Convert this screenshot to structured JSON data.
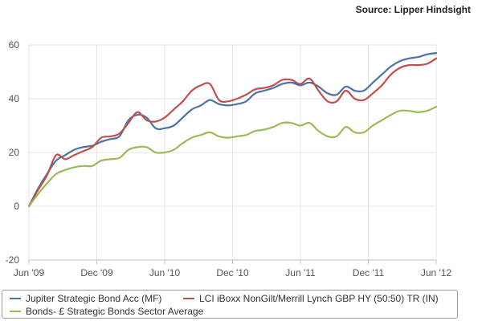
{
  "source": "Source: Lipper Hindsight",
  "chart_data": {
    "type": "line",
    "x_labels": [
      "Jun '09",
      "Dec '09",
      "Jun '10",
      "Dec '10",
      "Jun '11",
      "Dec '11",
      "Jun '12"
    ],
    "ylim": [
      -20,
      60
    ],
    "y_ticks": [
      -20,
      0,
      20,
      40,
      60
    ],
    "grid": true,
    "legend_position": "bottom",
    "series": [
      {
        "name": "Jupiter Strategic Bond Acc (MF)",
        "color": "#4a72a8",
        "points": [
          [
            0,
            0
          ],
          [
            1,
            6.5
          ],
          [
            2,
            12
          ],
          [
            3,
            17
          ],
          [
            4,
            19
          ],
          [
            5,
            21
          ],
          [
            6,
            22
          ],
          [
            7,
            22.5
          ],
          [
            8,
            24
          ],
          [
            9,
            25
          ],
          [
            10,
            26
          ],
          [
            11,
            32
          ],
          [
            12,
            34
          ],
          [
            13,
            33
          ],
          [
            14,
            29
          ],
          [
            15,
            29
          ],
          [
            16,
            30
          ],
          [
            17,
            33
          ],
          [
            18,
            36
          ],
          [
            19,
            37.5
          ],
          [
            20,
            39.5
          ],
          [
            21,
            38
          ],
          [
            22,
            37.5
          ],
          [
            23,
            38
          ],
          [
            24,
            39
          ],
          [
            25,
            42
          ],
          [
            26,
            43
          ],
          [
            27,
            44
          ],
          [
            28,
            45.5
          ],
          [
            29,
            46
          ],
          [
            30,
            45
          ],
          [
            31,
            46
          ],
          [
            32,
            44.5
          ],
          [
            33,
            42
          ],
          [
            34,
            41.5
          ],
          [
            35,
            44.5
          ],
          [
            36,
            43
          ],
          [
            37,
            43
          ],
          [
            38,
            46
          ],
          [
            39,
            49
          ],
          [
            40,
            52
          ],
          [
            41,
            54
          ],
          [
            42,
            55
          ],
          [
            43,
            55.5
          ],
          [
            44,
            56.5
          ],
          [
            45,
            57
          ]
        ]
      },
      {
        "name": "LCI iBoxx NonGilt/Merrill Lynch GBP HY (50:50) TR (IN)",
        "color": "#c0504d",
        "points": [
          [
            0,
            0
          ],
          [
            1,
            6
          ],
          [
            2,
            11.5
          ],
          [
            3,
            19
          ],
          [
            4,
            17.5
          ],
          [
            5,
            19
          ],
          [
            6,
            20.5
          ],
          [
            7,
            22
          ],
          [
            8,
            25.5
          ],
          [
            9,
            26
          ],
          [
            10,
            27
          ],
          [
            11,
            31
          ],
          [
            12,
            35
          ],
          [
            13,
            32
          ],
          [
            14,
            31.5
          ],
          [
            15,
            33
          ],
          [
            16,
            36
          ],
          [
            17,
            39
          ],
          [
            18,
            43
          ],
          [
            19,
            45
          ],
          [
            20,
            45.5
          ],
          [
            21,
            39.5
          ],
          [
            22,
            39
          ],
          [
            23,
            40
          ],
          [
            24,
            41.5
          ],
          [
            25,
            43.5
          ],
          [
            26,
            44
          ],
          [
            27,
            45
          ],
          [
            28,
            47
          ],
          [
            29,
            47
          ],
          [
            30,
            45.5
          ],
          [
            31,
            47.5
          ],
          [
            32,
            43
          ],
          [
            33,
            39
          ],
          [
            34,
            39
          ],
          [
            35,
            43
          ],
          [
            36,
            40
          ],
          [
            37,
            39.5
          ],
          [
            38,
            42
          ],
          [
            39,
            45
          ],
          [
            40,
            49
          ],
          [
            41,
            51.5
          ],
          [
            42,
            52.5
          ],
          [
            43,
            52.5
          ],
          [
            44,
            53
          ],
          [
            45,
            55
          ]
        ]
      },
      {
        "name": "Bonds- £ Strategic Bonds Sector Average",
        "color": "#9bbb59",
        "points": [
          [
            0,
            0
          ],
          [
            1,
            4.5
          ],
          [
            2,
            8.5
          ],
          [
            3,
            12
          ],
          [
            4,
            13.5
          ],
          [
            5,
            14.5
          ],
          [
            6,
            15
          ],
          [
            7,
            15
          ],
          [
            8,
            17
          ],
          [
            9,
            17.5
          ],
          [
            10,
            18
          ],
          [
            11,
            21
          ],
          [
            12,
            22
          ],
          [
            13,
            22
          ],
          [
            14,
            20
          ],
          [
            15,
            20
          ],
          [
            16,
            21
          ],
          [
            17,
            23.5
          ],
          [
            18,
            25.5
          ],
          [
            19,
            26.5
          ],
          [
            20,
            27.5
          ],
          [
            21,
            26
          ],
          [
            22,
            25.5
          ],
          [
            23,
            26
          ],
          [
            24,
            26.5
          ],
          [
            25,
            28
          ],
          [
            26,
            28.5
          ],
          [
            27,
            29.5
          ],
          [
            28,
            31
          ],
          [
            29,
            31
          ],
          [
            30,
            30
          ],
          [
            31,
            31
          ],
          [
            32,
            28
          ],
          [
            33,
            26
          ],
          [
            34,
            26
          ],
          [
            35,
            29.5
          ],
          [
            36,
            27.5
          ],
          [
            37,
            27.5
          ],
          [
            38,
            30
          ],
          [
            39,
            32
          ],
          [
            40,
            34
          ],
          [
            41,
            35.5
          ],
          [
            42,
            35.5
          ],
          [
            43,
            35
          ],
          [
            44,
            35.5
          ],
          [
            45,
            37
          ]
        ]
      }
    ]
  }
}
